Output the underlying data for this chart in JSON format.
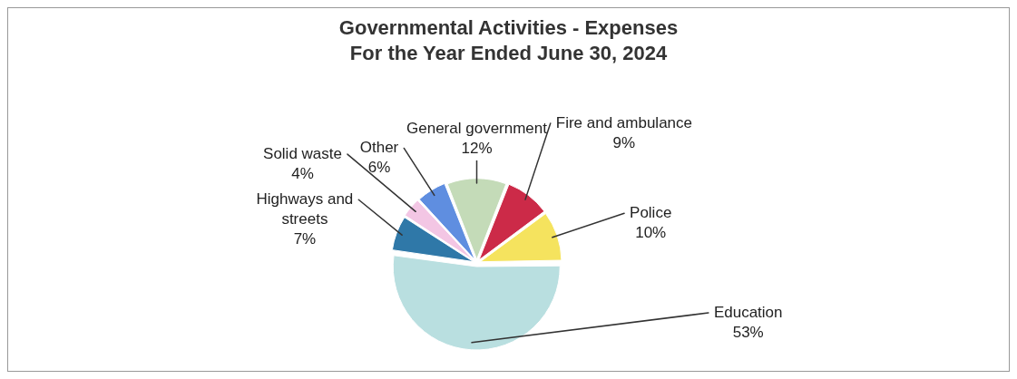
{
  "chart_data": {
    "type": "pie",
    "title": "Governmental Activities - Expenses",
    "subtitle": "For the Year Ended June 30, 2024",
    "categories": [
      "General government",
      "Fire and ambulance",
      "Police",
      "Education",
      "Highways and streets",
      "Solid waste",
      "Other"
    ],
    "values": [
      12,
      9,
      10,
      53,
      7,
      4,
      6
    ],
    "value_labels": [
      "12%",
      "9%",
      "10%",
      "53%",
      "7%",
      "4%",
      "6%"
    ],
    "colors": [
      "#c4dbb8",
      "#cc2a48",
      "#f5e35e",
      "#b9dfe0",
      "#2f78a8",
      "#f3c6e4",
      "#5f8ee0"
    ],
    "legend": false
  }
}
